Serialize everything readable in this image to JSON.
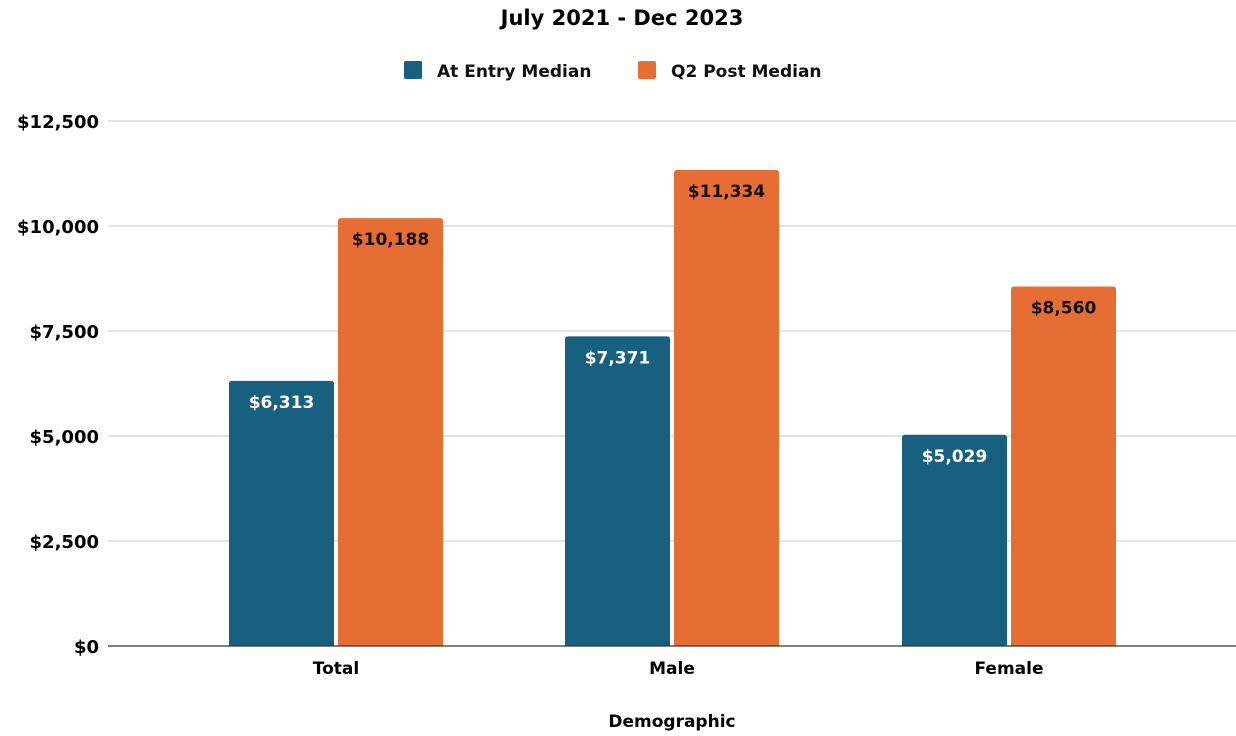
{
  "chart_data": {
    "type": "bar",
    "title": "July 2021 - Dec 2023",
    "xlabel": "Demographic",
    "ylabel": "",
    "categories": [
      "Total",
      "Male",
      "Female"
    ],
    "series": [
      {
        "name": "At Entry Median",
        "color": "#17607f",
        "label_color": "#ffffff",
        "values": [
          6313,
          7371,
          5029
        ],
        "labels": [
          "$6,313",
          "$7,371",
          "$5,029"
        ]
      },
      {
        "name": "Q2 Post Median",
        "color": "#e66e35",
        "label_color": "#111111",
        "values": [
          10188,
          11334,
          8560
        ],
        "labels": [
          "$10,188",
          "$11,334",
          "$8,560"
        ]
      }
    ],
    "ylim": [
      0,
      12500
    ],
    "yticks": [
      0,
      2500,
      5000,
      7500,
      10000,
      12500
    ],
    "ytick_labels": [
      "$0",
      "$2,500",
      "$5,000",
      "$7,500",
      "$10,000",
      "$12,500"
    ],
    "grid": true,
    "legend": "top-center"
  }
}
